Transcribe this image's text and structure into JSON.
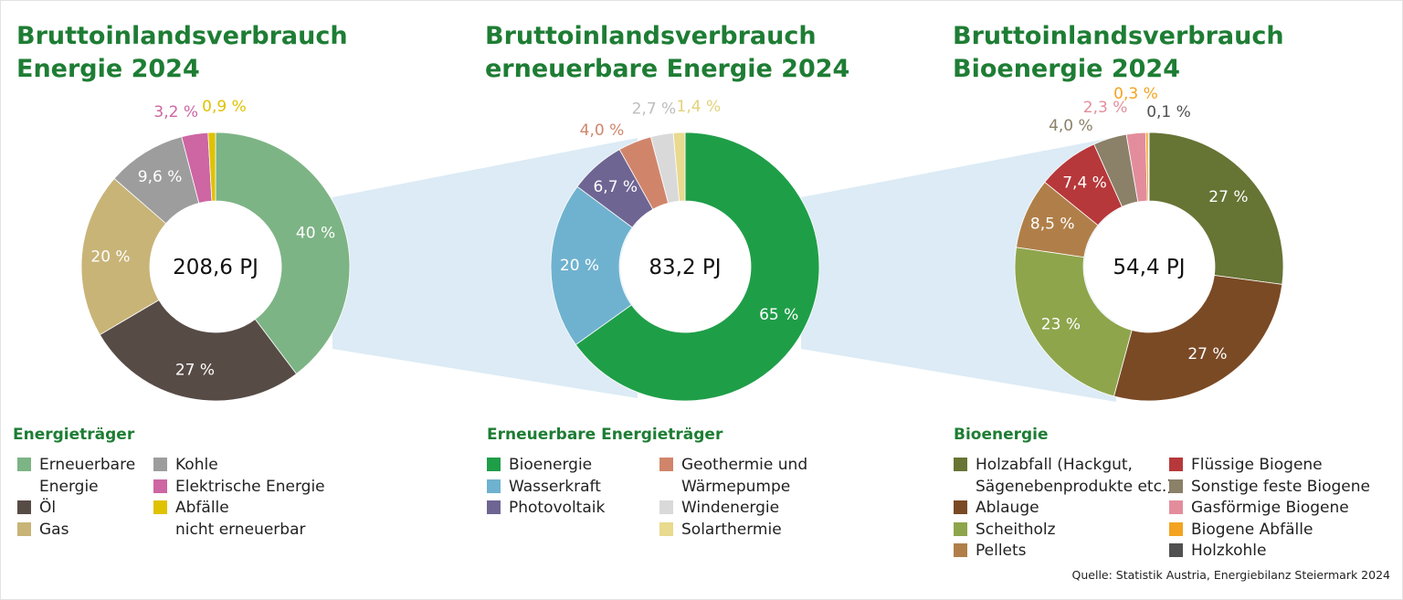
{
  "charts": [
    {
      "title_line1": "Bruttoinlandsverbrauch",
      "title_line2": "Energie 2024",
      "center_label": "208,6 PJ",
      "legend_title": "Energieträger",
      "legend_columns": [
        [
          {
            "label": "Erneuerbare\nEnergie",
            "color": "#7db485"
          },
          {
            "label": "Öl",
            "color": "#574b46"
          },
          {
            "label": "Gas",
            "color": "#c8b477"
          }
        ],
        [
          {
            "label": "Kohle",
            "color": "#9d9d9d"
          },
          {
            "label": "Elektrische Energie",
            "color": "#cd66a2"
          },
          {
            "label": "Abfälle\nnicht erneuerbar",
            "color": "#dfc200"
          }
        ]
      ]
    },
    {
      "title_line1": "Bruttoinlandsverbrauch",
      "title_line2": "erneuerbare Energie 2024",
      "center_label": "83,2 PJ",
      "legend_title": "Erneuerbare Energieträger",
      "legend_columns": [
        [
          {
            "label": "Bioenergie",
            "color": "#1f9e48"
          },
          {
            "label": "Wasserkraft",
            "color": "#6fb2cf"
          },
          {
            "label": "Photovoltaik",
            "color": "#6f6593"
          }
        ],
        [
          {
            "label": "Geothermie und\nWärmepumpe",
            "color": "#d0856b"
          },
          {
            "label": "Windenergie",
            "color": "#d9d9d9"
          },
          {
            "label": "Solarthermie",
            "color": "#e8da8e"
          }
        ]
      ]
    },
    {
      "title_line1": "Bruttoinlandsverbrauch",
      "title_line2": "Bioenergie 2024",
      "center_label": "54,4 PJ",
      "legend_title": "Bioenergie",
      "legend_columns": [
        [
          {
            "label": "Holzabfall (Hackgut,\nSägenebenprodukte etc.)",
            "color": "#667434"
          },
          {
            "label": "Ablauge",
            "color": "#7a4a25"
          },
          {
            "label": "Scheitholz",
            "color": "#8ea54c"
          },
          {
            "label": "Pellets",
            "color": "#b07f49"
          }
        ],
        [
          {
            "label": "Flüssige Biogene",
            "color": "#b7383a"
          },
          {
            "label": "Sonstige feste Biogene",
            "color": "#8b8068"
          },
          {
            "label": "Gasförmige Biogene",
            "color": "#e38d9c"
          },
          {
            "label": "Biogene Abfälle",
            "color": "#f3a321"
          },
          {
            "label": "Holzkohle",
            "color": "#505050"
          }
        ]
      ]
    }
  ],
  "chart_data": [
    {
      "type": "pie",
      "variant": "donut",
      "title": "Bruttoinlandsverbrauch Energie 2024",
      "total": "208,6 PJ",
      "labels": [
        "Erneuerbare Energie",
        "Öl",
        "Gas",
        "Kohle",
        "Elektrische Energie",
        "Abfälle nicht erneuerbar"
      ],
      "values": [
        40,
        27,
        20,
        9.6,
        3.2,
        0.9
      ],
      "value_labels": [
        "40 %",
        "27 %",
        "20 %",
        "9,6 %",
        "3,2 %",
        "0,9 %"
      ],
      "colors": [
        "#7db485",
        "#574b46",
        "#c8b477",
        "#9d9d9d",
        "#cd66a2",
        "#dfc200"
      ],
      "label_colors": [
        "#ffffff",
        "#ffffff",
        "#ffffff",
        "#ffffff",
        "#cd66a2",
        "#dfc200"
      ],
      "label_outside": [
        false,
        false,
        false,
        false,
        true,
        true
      ]
    },
    {
      "type": "pie",
      "variant": "donut",
      "title": "Bruttoinlandsverbrauch erneuerbare Energie 2024",
      "total": "83,2 PJ",
      "labels": [
        "Bioenergie",
        "Wasserkraft",
        "Photovoltaik",
        "Geothermie und Wärmepumpe",
        "Windenergie",
        "Solarthermie"
      ],
      "values": [
        65,
        20,
        6.7,
        4.0,
        2.7,
        1.4
      ],
      "value_labels": [
        "65 %",
        "20 %",
        "6,7 %",
        "4,0 %",
        "2,7 %",
        "1,4 %"
      ],
      "colors": [
        "#1f9e48",
        "#6fb2cf",
        "#6f6593",
        "#d0856b",
        "#d9d9d9",
        "#e8da8e"
      ],
      "label_colors": [
        "#ffffff",
        "#ffffff",
        "#ffffff",
        "#d0856b",
        "#bdbdbd",
        "#e1d27a"
      ],
      "label_outside": [
        false,
        false,
        false,
        true,
        true,
        true
      ]
    },
    {
      "type": "pie",
      "variant": "donut",
      "title": "Bruttoinlandsverbrauch Bioenergie 2024",
      "total": "54,4 PJ",
      "labels": [
        "Holzabfall (Hackgut, Sägenebenprodukte etc.)",
        "Ablauge",
        "Scheitholz",
        "Pellets",
        "Flüssige Biogene",
        "Sonstige feste Biogene",
        "Gasförmige Biogene",
        "Biogene Abfälle",
        "Holzkohle"
      ],
      "values": [
        27,
        27,
        23,
        8.5,
        7.4,
        4.0,
        2.3,
        0.3,
        0.1
      ],
      "value_labels": [
        "27 %",
        "27 %",
        "23 %",
        "8,5 %",
        "7,4 %",
        "4,0 %",
        "2,3 %",
        "0,3 %",
        "0,1 %"
      ],
      "colors": [
        "#667434",
        "#7a4a25",
        "#8ea54c",
        "#b07f49",
        "#b7383a",
        "#8b8068",
        "#e38d9c",
        "#f3a321",
        "#505050"
      ],
      "label_colors": [
        "#ffffff",
        "#ffffff",
        "#ffffff",
        "#ffffff",
        "#ffffff",
        "#8b8068",
        "#e38d9c",
        "#f3a321",
        "#505050"
      ],
      "label_outside": [
        false,
        false,
        false,
        false,
        false,
        true,
        true,
        true,
        true
      ]
    }
  ],
  "band_color": "#dcebf5",
  "source": "Quelle: Statistik Austria, Energiebilanz Steiermark 2024"
}
